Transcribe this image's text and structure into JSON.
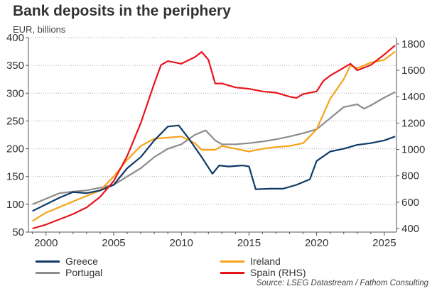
{
  "title": "Bank deposits in the periphery",
  "subtitle": "EUR, billions",
  "source": "Source: LSEG Datastream / Fathom Consulting",
  "chart_data": {
    "type": "line",
    "title": "Bank deposits in the periphery",
    "ylabel": "EUR, billions",
    "xlim": [
      1998.7,
      2025.9
    ],
    "ylim_left": [
      50,
      400
    ],
    "ylim_right": [
      373,
      1848
    ],
    "x_ticks": [
      2000,
      2005,
      2010,
      2015,
      2020,
      2025
    ],
    "y_ticks_left": [
      50,
      100,
      150,
      200,
      250,
      300,
      350,
      400
    ],
    "y_ticks_right": [
      400,
      600,
      800,
      1000,
      1200,
      1400,
      1600,
      1800
    ],
    "grid": "horizontal dotted",
    "legend_placement": "bottom",
    "series": [
      {
        "name": "Greece",
        "axis": "left",
        "color": "#0d3a66",
        "x": [
          1999,
          2000,
          2001,
          2002,
          2003,
          2004,
          2005,
          2006,
          2007,
          2008,
          2009,
          2009.8,
          2010.5,
          2011.5,
          2012.3,
          2012.8,
          2013.5,
          2014.5,
          2015.0,
          2015.5,
          2016.5,
          2017.5,
          2018.5,
          2019.5,
          2020,
          2021,
          2022,
          2023,
          2024,
          2025,
          2025.8
        ],
        "y": [
          88,
          100,
          112,
          122,
          120,
          125,
          135,
          165,
          185,
          215,
          240,
          242,
          220,
          185,
          155,
          170,
          168,
          170,
          168,
          127,
          128,
          128,
          135,
          145,
          178,
          195,
          200,
          207,
          210,
          215,
          222
        ]
      },
      {
        "name": "Ireland",
        "axis": "left",
        "color": "#f5a31a",
        "x": [
          1999,
          2000,
          2001,
          2002,
          2003,
          2004,
          2005,
          2006,
          2007,
          2008,
          2009,
          2010,
          2011,
          2011.5,
          2012.5,
          2013,
          2014,
          2015,
          2016,
          2017,
          2018,
          2019,
          2020,
          2021,
          2022,
          2022.5,
          2023,
          2024,
          2025,
          2025.8
        ],
        "y": [
          70,
          85,
          95,
          105,
          115,
          125,
          150,
          180,
          205,
          218,
          220,
          222,
          210,
          198,
          198,
          205,
          200,
          195,
          200,
          203,
          205,
          210,
          235,
          290,
          325,
          350,
          345,
          355,
          360,
          375
        ]
      },
      {
        "name": "Portugal",
        "axis": "left",
        "color": "#8c8c8c",
        "x": [
          1999,
          2000,
          2001,
          2002,
          2003,
          2004,
          2005,
          2006,
          2007,
          2008,
          2009,
          2010,
          2011,
          2011.8,
          2012.5,
          2013,
          2014,
          2015,
          2016,
          2017,
          2018,
          2019,
          2020,
          2021,
          2022,
          2023,
          2023.5,
          2024,
          2025,
          2025.8
        ],
        "y": [
          100,
          110,
          120,
          123,
          125,
          130,
          135,
          150,
          165,
          185,
          200,
          208,
          225,
          233,
          215,
          208,
          208,
          210,
          213,
          217,
          222,
          228,
          235,
          255,
          275,
          280,
          272,
          278,
          292,
          302
        ]
      },
      {
        "name": "Spain (RHS)",
        "axis": "right",
        "color": "#e8141c",
        "x": [
          1999,
          2000,
          2001,
          2002,
          2003,
          2004,
          2005,
          2006,
          2007,
          2008,
          2008.5,
          2009,
          2010,
          2011,
          2011.5,
          2012,
          2012.5,
          2013,
          2014,
          2015,
          2016,
          2017,
          2018,
          2018.5,
          2019,
          2020,
          2020.5,
          2021,
          2022,
          2022.5,
          2023,
          2024,
          2025,
          2025.8
        ],
        "y": [
          400,
          430,
          470,
          510,
          560,
          640,
          760,
          950,
          1200,
          1500,
          1640,
          1670,
          1650,
          1700,
          1740,
          1680,
          1500,
          1500,
          1470,
          1460,
          1440,
          1430,
          1400,
          1390,
          1420,
          1440,
          1520,
          1560,
          1620,
          1650,
          1600,
          1640,
          1720,
          1790
        ]
      }
    ]
  }
}
